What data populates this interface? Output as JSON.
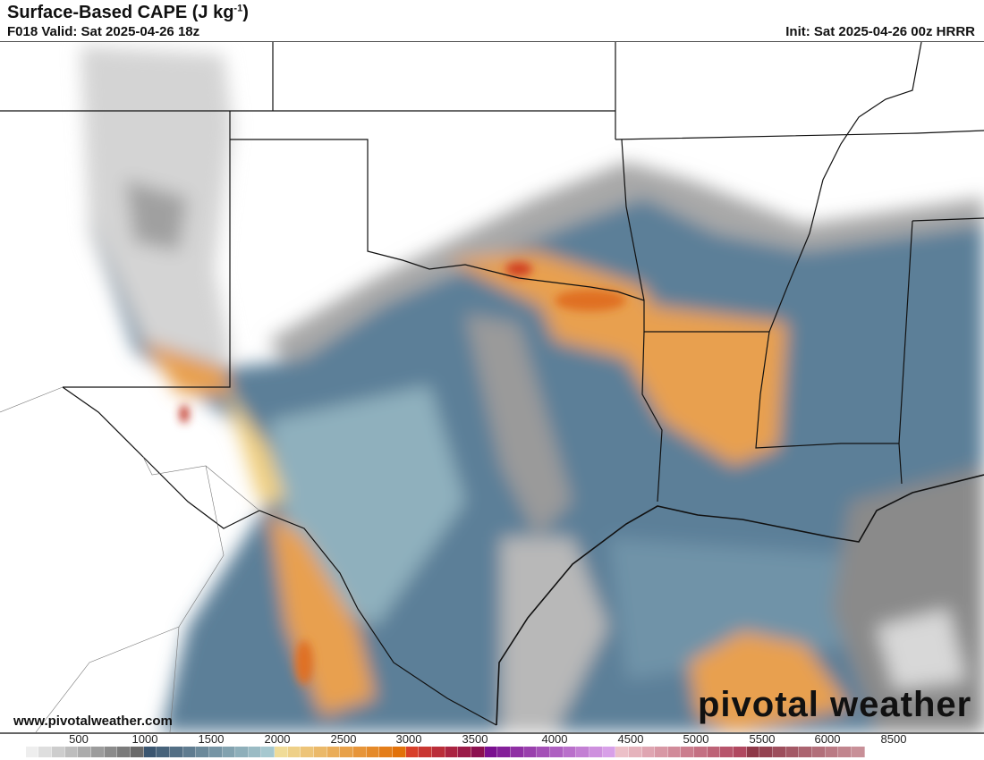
{
  "header": {
    "title": "Surface-Based CAPE (J kg",
    "title_sup": "-1",
    "title_end": ")",
    "valid": "F018 Valid: Sat 2025-04-26 18z",
    "init": "Init: Sat 2025-04-26 00z HRRR"
  },
  "footer": {
    "website": "www.pivotalweather.com",
    "logo": "pivotal weather"
  },
  "colorbar": {
    "labels": [
      "500",
      "1000",
      "1500",
      "2000",
      "2500",
      "3000",
      "3500",
      "4000",
      "4500",
      "5000",
      "5500",
      "6000",
      "8500"
    ],
    "segments": [
      {
        "from": "#ffffff",
        "to": "#6a6a6a",
        "bins": 10
      },
      {
        "from": "#3b5670",
        "to": "#a6c8cf",
        "bins": 10
      },
      {
        "from": "#f0dc98",
        "to": "#e2720a",
        "bins": 10
      },
      {
        "from": "#d8402a",
        "to": "#8c1250",
        "bins": 6
      },
      {
        "from": "#7a1090",
        "to": "#d8a0e8",
        "bins": 10
      },
      {
        "from": "#ecc0c8",
        "to": "#b04860",
        "bins": 10
      },
      {
        "from": "#8e3848",
        "to": "#c89098",
        "bins": 9
      }
    ]
  },
  "map_colors": {
    "gray": "#9a9a9a",
    "blue": "#5b7f98",
    "lightblue": "#8fb0bd",
    "orange": "#e8a050",
    "yellow": "#f0cf80",
    "red": "#d04020"
  }
}
